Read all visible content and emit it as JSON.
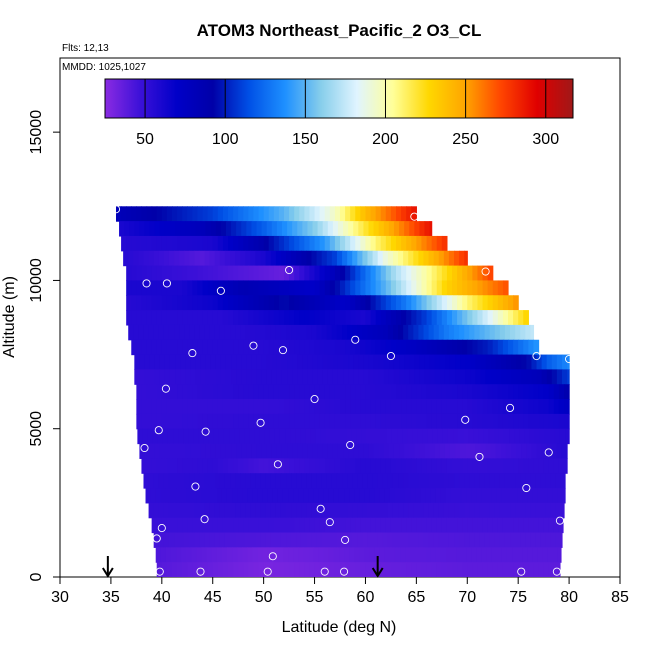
{
  "chart_data": {
    "type": "heatmap",
    "title": "ATOM3 Northeast_Pacific_2 O3_CL",
    "annotations": [
      "Flts: 12,13",
      "MMDD: 1025,1027"
    ],
    "xlabel": "Latitude (deg N)",
    "ylabel": "Altitude (m)",
    "xlim": [
      30,
      85
    ],
    "ylim": [
      0,
      17500
    ],
    "x_ticks": [
      30,
      35,
      40,
      45,
      50,
      55,
      60,
      65,
      70,
      75,
      80,
      85
    ],
    "y_ticks": [
      0,
      5000,
      10000,
      15000
    ],
    "colorbar": {
      "range": [
        25,
        317
      ],
      "ticks": [
        50,
        100,
        150,
        200,
        250,
        300
      ],
      "colors": [
        "#8a2be2",
        "#3a10d8",
        "#0000c8",
        "#0000a8",
        "#0050e6",
        "#1e90ff",
        "#87ceeb",
        "#e0f4ff",
        "#ffff99",
        "#ffd700",
        "#ffa500",
        "#ff4500",
        "#e00000",
        "#a01818"
      ]
    },
    "arrows_latitude": [
      34.7,
      61.2
    ],
    "profile_rows": [
      {
        "alt": 12250,
        "lat_range": [
          35.5,
          65.0
        ],
        "values": [
          [
            35.5,
            80
          ],
          [
            45,
            110
          ],
          [
            52,
            150
          ],
          [
            57,
            195
          ],
          [
            60,
            240
          ],
          [
            65,
            290
          ]
        ]
      },
      {
        "alt": 11750,
        "lat_range": [
          35.8,
          66.5
        ],
        "values": [
          [
            35.8,
            60
          ],
          [
            44,
            80
          ],
          [
            50,
            120
          ],
          [
            55,
            160
          ],
          [
            60,
            220
          ],
          [
            66.5,
            290
          ]
        ]
      },
      {
        "alt": 11250,
        "lat_range": [
          36.0,
          68.0
        ],
        "values": [
          [
            36,
            55
          ],
          [
            45,
            60
          ],
          [
            50,
            90
          ],
          [
            56,
            140
          ],
          [
            61,
            210
          ],
          [
            68,
            280
          ]
        ]
      },
      {
        "alt": 10750,
        "lat_range": [
          36.2,
          70.0
        ],
        "values": [
          [
            36.2,
            55
          ],
          [
            44,
            40
          ],
          [
            50,
            60
          ],
          [
            57,
            110
          ],
          [
            62,
            190
          ],
          [
            70,
            280
          ]
        ]
      },
      {
        "alt": 10250,
        "lat_range": [
          36.5,
          72.5
        ],
        "values": [
          [
            36.5,
            55
          ],
          [
            45,
            45
          ],
          [
            52,
            35
          ],
          [
            57,
            80
          ],
          [
            63,
            170
          ],
          [
            72.5,
            275
          ]
        ]
      },
      {
        "alt": 9750,
        "lat_range": [
          36.5,
          74.0
        ],
        "values": [
          [
            36.5,
            60
          ],
          [
            42,
            60
          ],
          [
            48,
            85
          ],
          [
            55,
            70
          ],
          [
            62,
            150
          ],
          [
            68,
            230
          ],
          [
            74,
            270
          ]
        ]
      },
      {
        "alt": 9250,
        "lat_range": [
          36.5,
          75.0
        ],
        "values": [
          [
            36.5,
            55
          ],
          [
            45,
            65
          ],
          [
            52,
            95
          ],
          [
            58,
            70
          ],
          [
            64,
            130
          ],
          [
            70,
            210
          ],
          [
            75,
            255
          ]
        ]
      },
      {
        "alt": 8750,
        "lat_range": [
          36.5,
          76.0
        ],
        "values": [
          [
            36.5,
            55
          ],
          [
            46,
            55
          ],
          [
            54,
            70
          ],
          [
            60,
            60
          ],
          [
            66,
            110
          ],
          [
            72,
            180
          ],
          [
            76,
            230
          ]
        ]
      },
      {
        "alt": 8250,
        "lat_range": [
          36.7,
          76.5
        ],
        "values": [
          [
            36.7,
            55
          ],
          [
            48,
            55
          ],
          [
            55,
            60
          ],
          [
            62,
            80
          ],
          [
            68,
            130
          ],
          [
            76.5,
            175
          ]
        ]
      },
      {
        "alt": 7750,
        "lat_range": [
          37.0,
          77.0
        ],
        "values": [
          [
            37,
            55
          ],
          [
            50,
            55
          ],
          [
            58,
            60
          ],
          [
            65,
            75
          ],
          [
            72,
            100
          ],
          [
            77,
            140
          ]
        ]
      },
      {
        "alt": 7250,
        "lat_range": [
          37.3,
          80.0
        ],
        "values": [
          [
            37.3,
            55
          ],
          [
            50,
            55
          ],
          [
            60,
            60
          ],
          [
            70,
            70
          ],
          [
            76,
            95
          ],
          [
            78,
            120
          ],
          [
            80,
            135
          ]
        ]
      },
      {
        "alt": 6750,
        "lat_range": [
          37.3,
          80.0
        ],
        "values": [
          [
            37.3,
            50
          ],
          [
            50,
            55
          ],
          [
            60,
            55
          ],
          [
            70,
            65
          ],
          [
            77,
            80
          ],
          [
            80,
            110
          ]
        ]
      },
      {
        "alt": 6250,
        "lat_range": [
          37.5,
          80.0
        ],
        "values": [
          [
            37.5,
            50
          ],
          [
            50,
            55
          ],
          [
            60,
            55
          ],
          [
            70,
            60
          ],
          [
            78,
            70
          ],
          [
            80,
            90
          ]
        ]
      },
      {
        "alt": 5750,
        "lat_range": [
          37.5,
          80.0
        ],
        "values": [
          [
            37.5,
            50
          ],
          [
            50,
            50
          ],
          [
            60,
            55
          ],
          [
            70,
            55
          ],
          [
            78,
            65
          ],
          [
            80,
            75
          ]
        ]
      },
      {
        "alt": 5250,
        "lat_range": [
          37.5,
          80.0
        ],
        "values": [
          [
            37.5,
            50
          ],
          [
            50,
            52
          ],
          [
            60,
            52
          ],
          [
            70,
            55
          ],
          [
            80,
            60
          ]
        ]
      },
      {
        "alt": 4750,
        "lat_range": [
          37.6,
          80.0
        ],
        "values": [
          [
            37.6,
            52
          ],
          [
            50,
            52
          ],
          [
            60,
            50
          ],
          [
            70,
            48
          ],
          [
            80,
            55
          ]
        ]
      },
      {
        "alt": 4250,
        "lat_range": [
          37.8,
          79.8
        ],
        "values": [
          [
            37.8,
            50
          ],
          [
            50,
            52
          ],
          [
            60,
            52
          ],
          [
            70,
            42
          ],
          [
            75,
            48
          ],
          [
            79.8,
            55
          ]
        ]
      },
      {
        "alt": 3750,
        "lat_range": [
          38.0,
          79.8
        ],
        "values": [
          [
            38,
            50
          ],
          [
            45,
            52
          ],
          [
            50,
            45
          ],
          [
            60,
            55
          ],
          [
            70,
            50
          ],
          [
            79.8,
            52
          ]
        ]
      },
      {
        "alt": 3250,
        "lat_range": [
          38.2,
          79.6
        ],
        "values": [
          [
            38.2,
            52
          ],
          [
            50,
            55
          ],
          [
            60,
            55
          ],
          [
            70,
            52
          ],
          [
            79.6,
            52
          ]
        ]
      },
      {
        "alt": 2750,
        "lat_range": [
          38.4,
          79.6
        ],
        "values": [
          [
            38.4,
            52
          ],
          [
            50,
            55
          ],
          [
            60,
            55
          ],
          [
            70,
            50
          ],
          [
            79.6,
            50
          ]
        ]
      },
      {
        "alt": 2250,
        "lat_range": [
          38.7,
          79.5
        ],
        "values": [
          [
            38.7,
            50
          ],
          [
            50,
            52
          ],
          [
            60,
            50
          ],
          [
            70,
            48
          ],
          [
            79.5,
            48
          ]
        ]
      },
      {
        "alt": 1750,
        "lat_range": [
          39.0,
          79.4
        ],
        "values": [
          [
            39,
            48
          ],
          [
            50,
            48
          ],
          [
            60,
            45
          ],
          [
            70,
            45
          ],
          [
            79.4,
            45
          ]
        ]
      },
      {
        "alt": 1250,
        "lat_range": [
          39.2,
          79.3
        ],
        "values": [
          [
            39.2,
            45
          ],
          [
            50,
            42
          ],
          [
            60,
            40
          ],
          [
            70,
            42
          ],
          [
            79.3,
            42
          ]
        ]
      },
      {
        "alt": 750,
        "lat_range": [
          39.4,
          79.2
        ],
        "values": [
          [
            39.4,
            42
          ],
          [
            50,
            32
          ],
          [
            56,
            35
          ],
          [
            60,
            38
          ],
          [
            70,
            40
          ],
          [
            79.2,
            40
          ]
        ]
      },
      {
        "alt": 250,
        "lat_range": [
          39.5,
          79.1
        ],
        "values": [
          [
            39.5,
            40
          ],
          [
            50,
            30
          ],
          [
            55,
            32
          ],
          [
            60,
            35
          ],
          [
            70,
            38
          ],
          [
            79.1,
            38
          ]
        ]
      }
    ],
    "sample_points": [
      [
        35.5,
        12400
      ],
      [
        64.8,
        12150
      ],
      [
        52.5,
        10350
      ],
      [
        71.8,
        10300
      ],
      [
        38.5,
        9900
      ],
      [
        40.5,
        9900
      ],
      [
        45.8,
        9650
      ],
      [
        59.0,
        8000
      ],
      [
        49.0,
        7800
      ],
      [
        51.9,
        7650
      ],
      [
        43.0,
        7550
      ],
      [
        62.5,
        7450
      ],
      [
        76.8,
        7450
      ],
      [
        80.0,
        7350
      ],
      [
        40.4,
        6350
      ],
      [
        55.0,
        6000
      ],
      [
        74.2,
        5700
      ],
      [
        69.8,
        5300
      ],
      [
        49.7,
        5200
      ],
      [
        39.7,
        4950
      ],
      [
        44.3,
        4900
      ],
      [
        58.5,
        4450
      ],
      [
        38.3,
        4350
      ],
      [
        71.2,
        4050
      ],
      [
        78.0,
        4200
      ],
      [
        51.4,
        3800
      ],
      [
        43.3,
        3050
      ],
      [
        75.8,
        3000
      ],
      [
        55.6,
        2300
      ],
      [
        44.2,
        1950
      ],
      [
        56.5,
        1850
      ],
      [
        79.1,
        1900
      ],
      [
        40.0,
        1650
      ],
      [
        39.5,
        1300
      ],
      [
        58.0,
        1250
      ],
      [
        50.9,
        700
      ],
      [
        39.8,
        180
      ],
      [
        43.8,
        180
      ],
      [
        50.4,
        180
      ],
      [
        56.0,
        180
      ],
      [
        57.9,
        180
      ],
      [
        75.3,
        180
      ],
      [
        78.8,
        180
      ]
    ]
  }
}
